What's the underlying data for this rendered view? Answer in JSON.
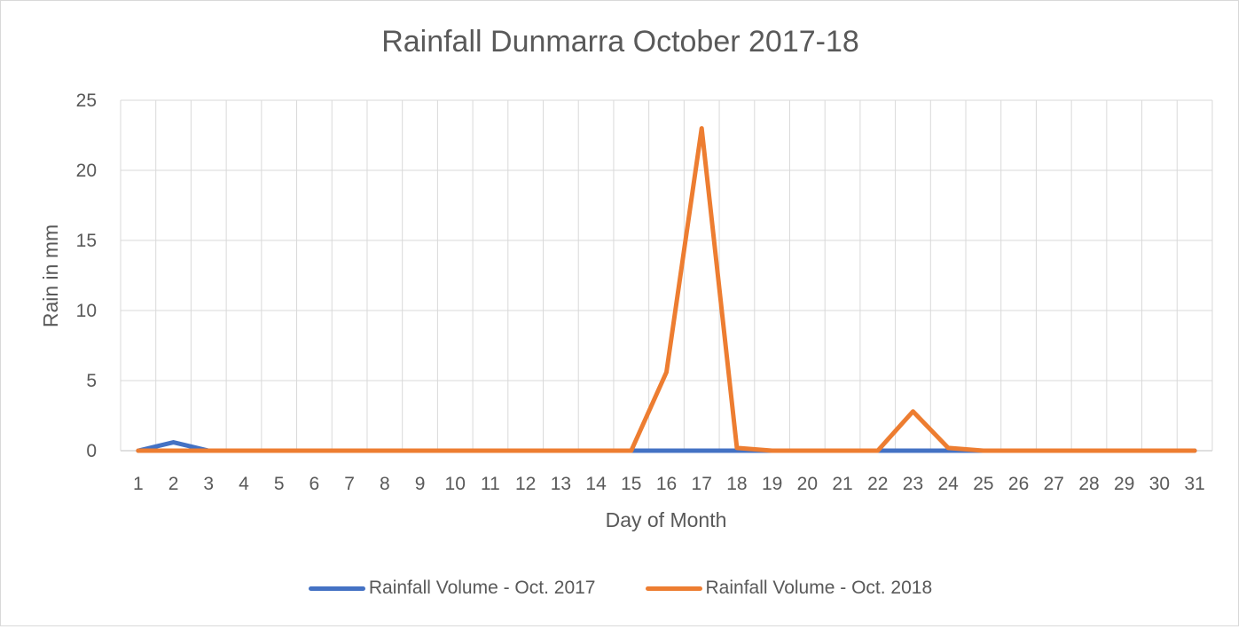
{
  "chart_data": {
    "type": "line",
    "title": "Rainfall Dunmarra October 2017-18",
    "xlabel": "Day of Month",
    "ylabel": "Rain in mm",
    "ylim": [
      0,
      25
    ],
    "yticks": [
      0,
      5,
      10,
      15,
      20,
      25
    ],
    "grid": true,
    "legend_position": "bottom",
    "categories": [
      "1",
      "2",
      "3",
      "4",
      "5",
      "6",
      "7",
      "8",
      "9",
      "10",
      "11",
      "12",
      "13",
      "14",
      "15",
      "16",
      "17",
      "18",
      "19",
      "20",
      "21",
      "22",
      "23",
      "24",
      "25",
      "26",
      "27",
      "28",
      "29",
      "30",
      "31"
    ],
    "series": [
      {
        "name": "Rainfall Volume - Oct. 2017",
        "color": "#4472c4",
        "values": [
          0,
          0.6,
          0,
          0,
          0,
          0,
          0,
          0,
          0,
          0,
          0,
          0,
          0,
          0,
          0,
          0,
          0,
          0,
          0,
          0,
          0,
          0,
          0,
          0,
          0,
          0,
          0,
          0,
          0,
          0,
          0
        ]
      },
      {
        "name": "Rainfall Volume - Oct. 2018",
        "color": "#ed7d31",
        "values": [
          0,
          0,
          0,
          0,
          0,
          0,
          0,
          0,
          0,
          0,
          0,
          0,
          0,
          0,
          0,
          5.6,
          23,
          0.2,
          0,
          0,
          0,
          0,
          2.8,
          0.2,
          0,
          0,
          0,
          0,
          0,
          0,
          0
        ]
      }
    ]
  }
}
